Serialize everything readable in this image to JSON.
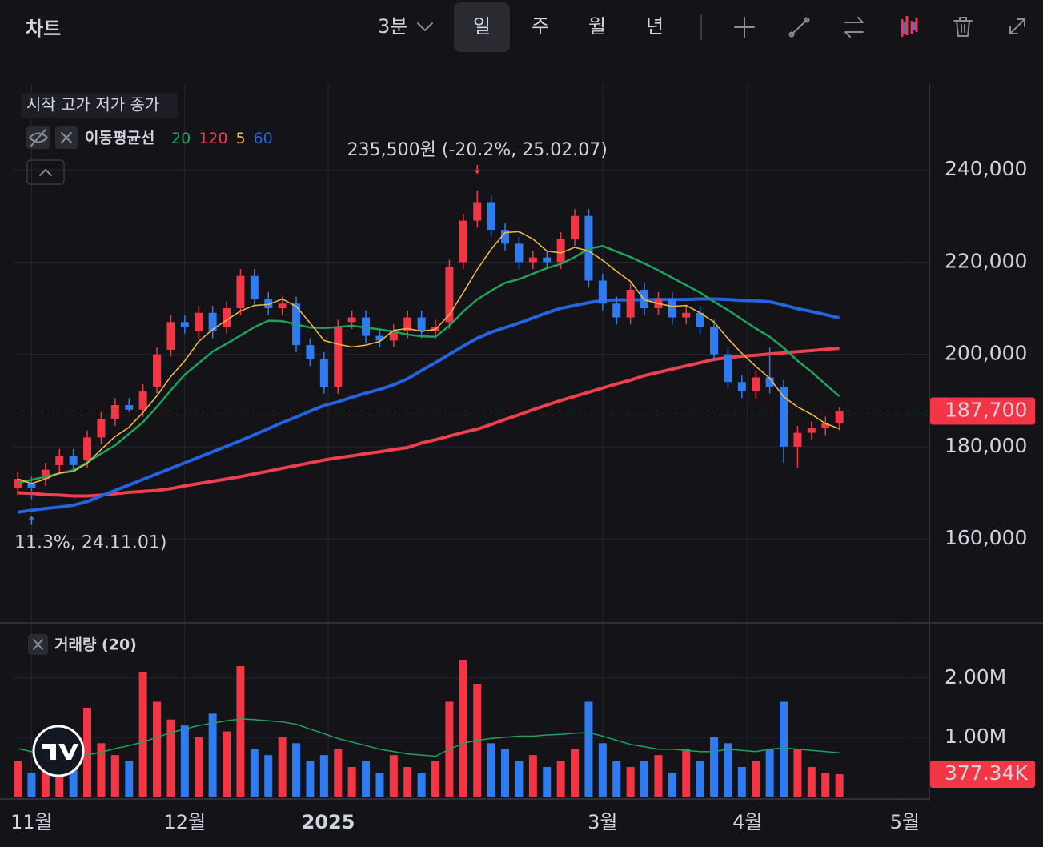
{
  "header": {
    "title": "차트",
    "interval": "3분",
    "periods": [
      "일",
      "주",
      "월",
      "년"
    ],
    "selected_period": "일"
  },
  "chart_data": [
    {
      "type": "candlestick",
      "legend_title": "시작 고가 저가 종가",
      "ma_label": "이동평균선",
      "high_annotation": "235,500원 (-20.2%, 25.02.07)",
      "low_annotation": "11.3%, 24.11.01)",
      "up_color": "#f23645",
      "down_color": "#2f7bf2",
      "open": [
        171000,
        172000,
        173000,
        176000,
        178000,
        177000,
        182000,
        186000,
        189000,
        188000,
        193000,
        201000,
        207000,
        205000,
        209000,
        206000,
        210000,
        217000,
        212000,
        210000,
        211000,
        202000,
        199000,
        193000,
        207000,
        208000,
        204000,
        203000,
        205000,
        208000,
        205000,
        207000,
        220000,
        229000,
        233000,
        227000,
        224000,
        220000,
        221000,
        220000,
        225000,
        230000,
        216000,
        211000,
        208000,
        214000,
        210000,
        212000,
        208000,
        209000,
        206000,
        200000,
        194000,
        192000,
        195000,
        193000,
        180000,
        183000,
        184000,
        185000
      ],
      "high": [
        174500,
        173500,
        176500,
        179500,
        179500,
        183500,
        187500,
        190500,
        190500,
        193500,
        201500,
        208500,
        208500,
        210500,
        210500,
        211500,
        218500,
        218500,
        213500,
        212500,
        212500,
        203500,
        200500,
        207500,
        209500,
        209500,
        205500,
        206500,
        209500,
        209500,
        207500,
        220500,
        230500,
        235500,
        234500,
        228500,
        225500,
        222500,
        222500,
        226500,
        231500,
        231500,
        217500,
        212500,
        215500,
        215500,
        213500,
        213500,
        210500,
        210500,
        207500,
        201500,
        195500,
        196500,
        201500,
        194500,
        184500,
        185500,
        186500,
        188500
      ],
      "low": [
        169500,
        168600,
        171500,
        174500,
        174500,
        175500,
        180500,
        184500,
        187500,
        186500,
        191500,
        199500,
        204500,
        203500,
        203500,
        204500,
        208500,
        210500,
        208500,
        208500,
        200500,
        197500,
        191500,
        191500,
        205500,
        202500,
        201500,
        201500,
        203500,
        203500,
        203500,
        205500,
        218500,
        227500,
        225500,
        222500,
        218500,
        218500,
        218500,
        218500,
        223500,
        214500,
        209500,
        206500,
        206500,
        208500,
        208500,
        206500,
        206500,
        204500,
        198500,
        192500,
        190500,
        190500,
        191500,
        176500,
        175500,
        181500,
        182500,
        183500
      ],
      "close": [
        173000,
        171000,
        175000,
        178000,
        176000,
        182000,
        186000,
        189000,
        188000,
        192000,
        200000,
        207000,
        206000,
        209000,
        205000,
        210000,
        217000,
        212000,
        210000,
        211000,
        202000,
        199000,
        193000,
        206000,
        208000,
        204000,
        203000,
        205000,
        208000,
        205000,
        206000,
        219000,
        229000,
        233000,
        227000,
        224000,
        220000,
        221000,
        220000,
        225000,
        230000,
        216000,
        211000,
        208000,
        214000,
        210000,
        212000,
        208000,
        209000,
        206000,
        200000,
        194000,
        192000,
        195000,
        193000,
        180000,
        183000,
        184000,
        185000,
        187700
      ],
      "series": [
        {
          "name": "20",
          "color": "#1fa35c",
          "width": 2.5,
          "values": [
            172100,
            172800,
            173500,
            174200,
            174900,
            176600,
            178500,
            180300,
            182800,
            185300,
            188600,
            192200,
            195600,
            198100,
            200600,
            202300,
            204100,
            205900,
            207300,
            207200,
            206500,
            205800,
            205700,
            205900,
            206200,
            205800,
            205400,
            204900,
            204300,
            203900,
            203800,
            206200,
            209300,
            211900,
            213800,
            215500,
            216300,
            217500,
            218700,
            219600,
            221100,
            222900,
            223500,
            222300,
            221100,
            219700,
            218200,
            216600,
            215000,
            213400,
            211400,
            209600,
            207600,
            205600,
            203800,
            201400,
            198600,
            196200,
            193500,
            190900
          ]
        },
        {
          "name": "120",
          "color": "#f0404f",
          "width": 4,
          "values": [
            170000,
            169900,
            169600,
            169500,
            169300,
            169300,
            169500,
            169800,
            170100,
            170300,
            170500,
            170900,
            171500,
            172000,
            172500,
            173000,
            173500,
            174100,
            174700,
            175300,
            175900,
            176500,
            177100,
            177600,
            178000,
            178500,
            178900,
            179400,
            179800,
            180800,
            181500,
            182300,
            183100,
            183800,
            184800,
            185900,
            186900,
            188000,
            189000,
            190000,
            190900,
            191800,
            192700,
            193600,
            194400,
            195400,
            196100,
            196800,
            197500,
            198200,
            198900,
            199300,
            199600,
            199800,
            200100,
            200300,
            200600,
            200800,
            201100,
            201300
          ]
        },
        {
          "name": "5",
          "color": "#f5bd42",
          "width": 1.5,
          "values": [
            173000,
            172000,
            173000,
            174300,
            174600,
            176400,
            179400,
            182200,
            184200,
            187400,
            191000,
            195200,
            198600,
            202800,
            205400,
            207400,
            209400,
            210600,
            210800,
            212000,
            210400,
            206800,
            203000,
            202200,
            201600,
            202000,
            202800,
            205200,
            205600,
            205000,
            205400,
            208600,
            213400,
            218400,
            222800,
            226400,
            226600,
            225000,
            222400,
            222000,
            223200,
            222400,
            220400,
            218000,
            215800,
            211800,
            211000,
            210400,
            210600,
            209000,
            207000,
            203400,
            200200,
            197400,
            194800,
            190800,
            188600,
            187000,
            185000,
            183900
          ]
        },
        {
          "name": "60",
          "color": "#2563e0",
          "width": 4,
          "values": [
            165800,
            166200,
            166600,
            166900,
            167300,
            168100,
            169300,
            170500,
            171700,
            172900,
            174100,
            175300,
            176500,
            177700,
            178900,
            180100,
            181300,
            182600,
            183900,
            185200,
            186400,
            187700,
            188900,
            189700,
            190700,
            191600,
            192400,
            193400,
            194700,
            196500,
            198200,
            200000,
            201800,
            203500,
            204800,
            205800,
            206800,
            207900,
            209000,
            210000,
            210600,
            211200,
            211700,
            211800,
            211800,
            211800,
            211900,
            211900,
            211900,
            212000,
            212000,
            211900,
            211700,
            211600,
            211400,
            210700,
            209900,
            209300,
            208600,
            207900
          ]
        }
      ],
      "ylim": [
        141800,
        258600
      ],
      "yticks": [
        {
          "value": 160000,
          "label": "160,000"
        },
        {
          "value": 180000,
          "label": "180,000"
        },
        {
          "value": 200000,
          "label": "200,000"
        },
        {
          "value": 220000,
          "label": "220,000"
        },
        {
          "value": 240000,
          "label": "240,000"
        }
      ],
      "last": {
        "value": 187700,
        "label": "187,700"
      },
      "grid": true
    },
    {
      "type": "bar",
      "title": "거래량 (20)",
      "values": [
        600000,
        400000,
        500000,
        1200000,
        800000,
        1500000,
        900000,
        700000,
        600000,
        2100000,
        1600000,
        1300000,
        1200000,
        1000000,
        1400000,
        1100000,
        2200000,
        800000,
        700000,
        1000000,
        900000,
        600000,
        700000,
        800000,
        500000,
        600000,
        400000,
        700000,
        500000,
        400000,
        600000,
        1600000,
        2300000,
        1900000,
        900000,
        800000,
        600000,
        700000,
        500000,
        600000,
        800000,
        1600000,
        900000,
        600000,
        500000,
        600000,
        700000,
        400000,
        800000,
        600000,
        1000000,
        900000,
        500000,
        600000,
        800000,
        1600000,
        800000,
        500000,
        400000,
        377340
      ],
      "ma": {
        "color": "#1fa35c",
        "values": [
          810000,
          760000,
          720000,
          700000,
          680000,
          700000,
          750000,
          810000,
          860000,
          920000,
          1000000,
          1080000,
          1140000,
          1200000,
          1240000,
          1280000,
          1310000,
          1300000,
          1280000,
          1260000,
          1220000,
          1140000,
          1060000,
          980000,
          920000,
          860000,
          800000,
          760000,
          720000,
          700000,
          680000,
          800000,
          900000,
          950000,
          980000,
          1000000,
          1020000,
          1020000,
          1040000,
          1050000,
          1070000,
          1080000,
          1020000,
          950000,
          880000,
          840000,
          800000,
          800000,
          780000,
          760000,
          760000,
          800000,
          780000,
          760000,
          800000,
          820000,
          800000,
          780000,
          760000,
          740000
        ]
      },
      "ylim": [
        0,
        2930000
      ],
      "yticks": [
        {
          "value": 1000000,
          "label": "1.00M"
        },
        {
          "value": 2000000,
          "label": "2.00M"
        }
      ],
      "last": {
        "value": 377340,
        "label": "377.34K"
      },
      "xlim": [
        -0.29,
        65.4
      ],
      "xticks": [
        {
          "value": 1,
          "label": "11월"
        },
        {
          "value": 12,
          "label": "12월"
        },
        {
          "value": 22.3,
          "label": "2025"
        },
        {
          "value": 42,
          "label": "3월"
        },
        {
          "value": 52.4,
          "label": "4월"
        },
        {
          "value": 63.7,
          "label": "5월"
        }
      ]
    }
  ]
}
